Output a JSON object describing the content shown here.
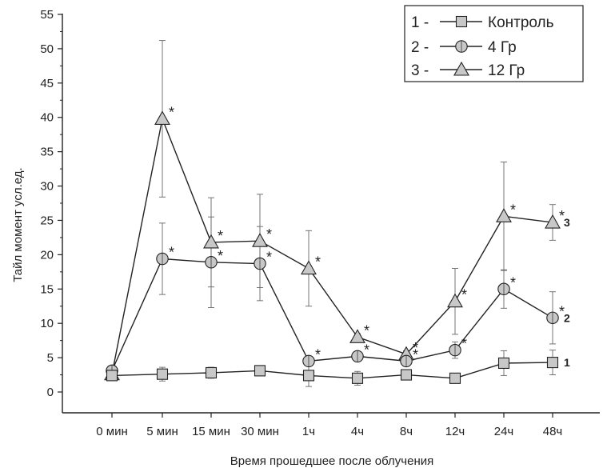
{
  "chart_data": {
    "type": "line",
    "title": "",
    "xlabel": "Время прошедшее после облучения",
    "ylabel": "Тайл момент усл.ед.",
    "ylim": [
      0,
      55
    ],
    "yticks": [
      0,
      5,
      10,
      15,
      20,
      25,
      30,
      35,
      40,
      45,
      50,
      55
    ],
    "categories": [
      "0 мин",
      "5 мин",
      "15 мин",
      "30 мин",
      "1ч",
      "4ч",
      "8ч",
      "12ч",
      "24ч",
      "48ч"
    ],
    "legend_position": "top-right",
    "significance_marker": "*",
    "series": [
      {
        "id": "control",
        "legend_num": "1 -",
        "name": "Контроль",
        "end_label": "1",
        "marker": "square",
        "values": [
          2.4,
          2.6,
          2.8,
          3.1,
          2.4,
          2.0,
          2.5,
          2.0,
          4.2,
          4.3
        ],
        "errors": [
          0.6,
          1.0,
          0.8,
          0.5,
          1.6,
          1.0,
          0.6,
          0.5,
          1.8,
          1.8
        ],
        "significant": [
          false,
          false,
          false,
          false,
          false,
          false,
          false,
          false,
          false,
          false
        ]
      },
      {
        "id": "gy4",
        "legend_num": "2 -",
        "name": "4 Гр",
        "end_label": "2",
        "marker": "circle",
        "values": [
          3.1,
          19.4,
          18.9,
          18.7,
          4.5,
          5.2,
          4.5,
          6.1,
          15.0,
          10.8
        ],
        "errors": [
          0.5,
          5.2,
          6.6,
          5.4,
          0.5,
          0.5,
          0.5,
          1.2,
          2.8,
          3.8
        ],
        "significant": [
          false,
          true,
          true,
          true,
          true,
          true,
          true,
          true,
          true,
          true
        ]
      },
      {
        "id": "gy12",
        "legend_num": "3 -",
        "name": "12 Гр",
        "end_label": "3",
        "marker": "triangle",
        "values": [
          2.6,
          39.8,
          21.8,
          22.0,
          18.0,
          8.0,
          5.5,
          13.2,
          25.6,
          24.7
        ],
        "errors": [
          0.4,
          11.4,
          6.5,
          6.8,
          5.5,
          0.5,
          0.5,
          4.8,
          7.9,
          2.6
        ],
        "significant": [
          false,
          true,
          true,
          true,
          true,
          true,
          true,
          true,
          true,
          true
        ]
      }
    ]
  }
}
